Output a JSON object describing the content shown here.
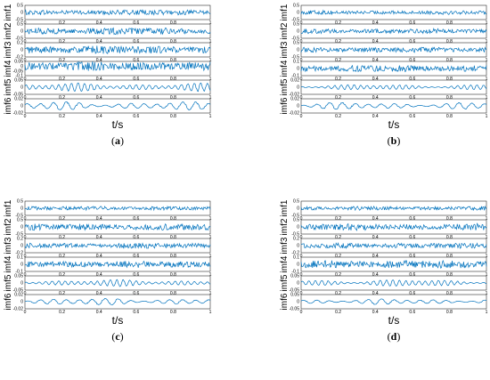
{
  "chart_data": [
    {
      "type": "line",
      "caption": "a",
      "xlabel": "t/s",
      "xlim": [
        0,
        1
      ],
      "x_ticks": [
        "0",
        "0.2",
        "0.4",
        "0.6",
        "0.8",
        "1"
      ],
      "series": [
        {
          "name": "imf1",
          "y_ticks": [
            "0.5",
            "0",
            "-0.5"
          ],
          "ylim": [
            -0.5,
            0.5
          ],
          "amplitude": 0.2
        },
        {
          "name": "imf2",
          "y_ticks": [
            "0.5",
            "0",
            "-0.5"
          ],
          "ylim": [
            -0.5,
            0.5
          ],
          "amplitude": 0.25
        },
        {
          "name": "imf3",
          "y_ticks": [
            "0.2",
            "0",
            "-0.2"
          ],
          "ylim": [
            -0.2,
            0.2
          ],
          "amplitude": 0.12
        },
        {
          "name": "imf4",
          "y_ticks": [
            "0.05",
            "0",
            "-0.05",
            "-0.1"
          ],
          "ylim": [
            -0.1,
            0.05
          ],
          "amplitude": 0.05
        },
        {
          "name": "imf5",
          "y_ticks": [
            "0.05",
            "0",
            "-0.05"
          ],
          "ylim": [
            -0.05,
            0.05
          ],
          "amplitude": 0.03
        },
        {
          "name": "imf6",
          "y_ticks": [
            "0.02",
            "0",
            "-0.02"
          ],
          "ylim": [
            -0.02,
            0.02
          ],
          "amplitude": 0.012
        }
      ]
    },
    {
      "type": "line",
      "caption": "b",
      "xlabel": "t/s",
      "xlim": [
        0,
        1
      ],
      "x_ticks": [
        "0",
        "0.2",
        "0.4",
        "0.6",
        "0.8",
        "1"
      ],
      "series": [
        {
          "name": "imf1",
          "y_ticks": [
            "0.5",
            "0",
            "-0.5"
          ],
          "ylim": [
            -0.5,
            0.5
          ],
          "amplitude": 0.15
        },
        {
          "name": "imf2",
          "y_ticks": [
            "0.5",
            "0",
            "-0.5"
          ],
          "ylim": [
            -0.5,
            0.5
          ],
          "amplitude": 0.18
        },
        {
          "name": "imf3",
          "y_ticks": [
            "0.5",
            "0",
            "-0.5"
          ],
          "ylim": [
            -0.5,
            0.5
          ],
          "amplitude": 0.2
        },
        {
          "name": "imf4",
          "y_ticks": [
            "0.1",
            "0",
            "-0.1"
          ],
          "ylim": [
            -0.1,
            0.1
          ],
          "amplitude": 0.05
        },
        {
          "name": "imf5",
          "y_ticks": [
            "0.02",
            "0",
            "-0.02"
          ],
          "ylim": [
            -0.02,
            0.02
          ],
          "amplitude": 0.008
        },
        {
          "name": "imf6",
          "y_ticks": [
            "0.02",
            "0",
            "-0.02"
          ],
          "ylim": [
            -0.02,
            0.02
          ],
          "amplitude": 0.01
        }
      ]
    },
    {
      "type": "line",
      "caption": "c",
      "xlabel": "t/s",
      "xlim": [
        0,
        1
      ],
      "x_ticks": [
        "0",
        "0.2",
        "0.4",
        "0.6",
        "0.8",
        "1"
      ],
      "series": [
        {
          "name": "imf1",
          "y_ticks": [
            "0.5",
            "0",
            "-0.5"
          ],
          "ylim": [
            -0.5,
            0.5
          ],
          "amplitude": 0.15
        },
        {
          "name": "imf2",
          "y_ticks": [
            "0.5",
            "0",
            "-0.5"
          ],
          "ylim": [
            -0.5,
            0.5
          ],
          "amplitude": 0.25
        },
        {
          "name": "imf3",
          "y_ticks": [
            "0.2",
            "0",
            "-0.2"
          ],
          "ylim": [
            -0.2,
            0.2
          ],
          "amplitude": 0.08
        },
        {
          "name": "imf4",
          "y_ticks": [
            "0.1",
            "0",
            "-0.1"
          ],
          "ylim": [
            -0.1,
            0.1
          ],
          "amplitude": 0.05
        },
        {
          "name": "imf5",
          "y_ticks": [
            "0.05",
            "0",
            "-0.05"
          ],
          "ylim": [
            -0.05,
            0.05
          ],
          "amplitude": 0.025
        },
        {
          "name": "imf6",
          "y_ticks": [
            "0.02",
            "0",
            "-0.02"
          ],
          "ylim": [
            -0.02,
            0.02
          ],
          "amplitude": 0.01
        }
      ]
    },
    {
      "type": "line",
      "caption": "d",
      "xlabel": "t/s",
      "xlim": [
        0,
        1
      ],
      "x_ticks": [
        "0",
        "0.2",
        "0.4",
        "0.6",
        "0.8",
        "1"
      ],
      "series": [
        {
          "name": "imf1",
          "y_ticks": [
            "0.5",
            "0",
            "-0.5"
          ],
          "ylim": [
            -0.5,
            0.5
          ],
          "amplitude": 0.15
        },
        {
          "name": "imf2",
          "y_ticks": [
            "0.5",
            "0",
            "-0.5"
          ],
          "ylim": [
            -0.5,
            0.5
          ],
          "amplitude": 0.25
        },
        {
          "name": "imf3",
          "y_ticks": [
            "0.2",
            "0",
            "-0.2"
          ],
          "ylim": [
            -0.2,
            0.2
          ],
          "amplitude": 0.08
        },
        {
          "name": "imf4",
          "y_ticks": [
            "0.1",
            "0",
            "-0.1"
          ],
          "ylim": [
            -0.1,
            0.1
          ],
          "amplitude": 0.06
        },
        {
          "name": "imf5",
          "y_ticks": [
            "0.05",
            "0",
            "-0.05"
          ],
          "ylim": [
            -0.05,
            0.05
          ],
          "amplitude": 0.025
        },
        {
          "name": "imf6",
          "y_ticks": [
            "0.05",
            "0",
            "-0.05"
          ],
          "ylim": [
            -0.05,
            0.05
          ],
          "amplitude": 0.02
        }
      ]
    }
  ],
  "colors": {
    "signal": "#0072BD",
    "axes": "#000000"
  }
}
